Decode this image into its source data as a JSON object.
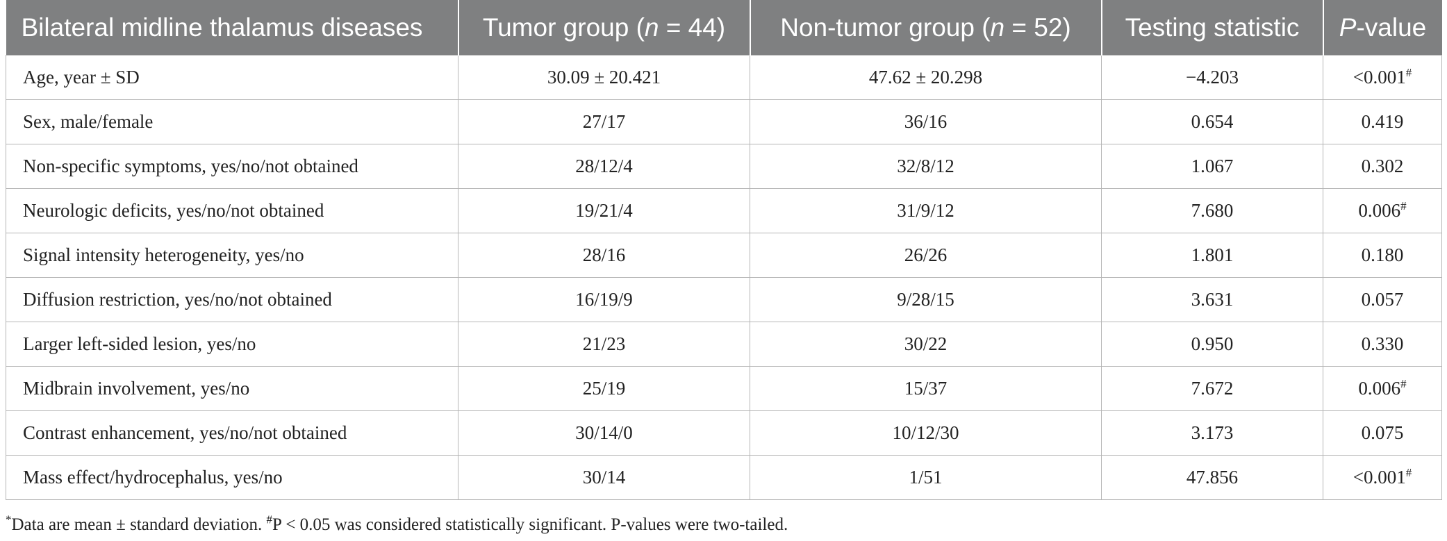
{
  "table": {
    "headers": {
      "col1": "Bilateral midline thalamus diseases",
      "col2_pre": "Tumor group (",
      "col2_n": "n",
      "col2_post": " = 44)",
      "col3_pre": "Non-tumor group (",
      "col3_n": "n",
      "col3_post": " = 52)",
      "col4": "Testing statistic",
      "col5_p": "P",
      "col5_post": "-value"
    },
    "rows": [
      {
        "label": "Age, year ± SD",
        "tumor": "30.09 ± 20.421",
        "nontumor": "47.62 ± 20.298",
        "stat": "−4.203",
        "p": "<0.001",
        "mark": "#"
      },
      {
        "label": "Sex, male/female",
        "tumor": "27/17",
        "nontumor": "36/16",
        "stat": "0.654",
        "p": "0.419",
        "mark": ""
      },
      {
        "label": "Non-specific symptoms, yes/no/not obtained",
        "tumor": "28/12/4",
        "nontumor": "32/8/12",
        "stat": "1.067",
        "p": "0.302",
        "mark": ""
      },
      {
        "label": "Neurologic deficits, yes/no/not obtained",
        "tumor": "19/21/4",
        "nontumor": "31/9/12",
        "stat": "7.680",
        "p": "0.006",
        "mark": "#"
      },
      {
        "label": "Signal intensity heterogeneity, yes/no",
        "tumor": "28/16",
        "nontumor": "26/26",
        "stat": "1.801",
        "p": "0.180",
        "mark": ""
      },
      {
        "label": "Diffusion restriction, yes/no/not obtained",
        "tumor": "16/19/9",
        "nontumor": "9/28/15",
        "stat": "3.631",
        "p": "0.057",
        "mark": ""
      },
      {
        "label": "Larger left-sided lesion, yes/no",
        "tumor": "21/23",
        "nontumor": "30/22",
        "stat": "0.950",
        "p": "0.330",
        "mark": ""
      },
      {
        "label": "Midbrain involvement, yes/no",
        "tumor": "25/19",
        "nontumor": "15/37",
        "stat": "7.672",
        "p": "0.006",
        "mark": "#"
      },
      {
        "label": "Contrast enhancement, yes/no/not obtained",
        "tumor": "30/14/0",
        "nontumor": "10/12/30",
        "stat": "3.173",
        "p": "0.075",
        "mark": ""
      },
      {
        "label": "Mass effect/hydrocephalus, yes/no",
        "tumor": "30/14",
        "nontumor": "1/51",
        "stat": "47.856",
        "p": "<0.001",
        "mark": "#"
      }
    ]
  },
  "footnote": {
    "star": "*",
    "text1": "Data are mean ± standard deviation. ",
    "hash": "#",
    "text2": "P < 0.05 was considered statistically significant. P-values were two-tailed."
  }
}
